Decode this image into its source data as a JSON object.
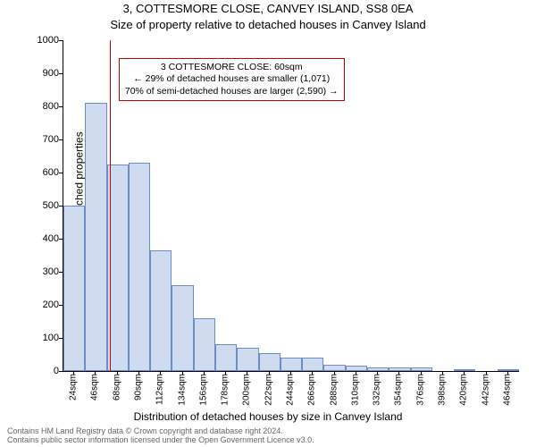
{
  "suptitle": "3, COTTESMORE CLOSE, CANVEY ISLAND, SS8 0EA",
  "title": "Size of property relative to detached houses in Canvey Island",
  "ylabel": "Number of detached properties",
  "xlabel": "Distribution of detached houses by size in Canvey Island",
  "attribution_line1": "Contains HM Land Registry data © Crown copyright and database right 2024.",
  "attribution_line2": "Contains public sector information licensed under the Open Government Licence v3.0.",
  "chart": {
    "type": "histogram",
    "background_color": "#ffffff",
    "bar_fill": "#cfdcef",
    "bar_edge": "#6b8dc6",
    "marker_color": "#cc0000",
    "text_color": "#000000",
    "attribution_color": "#666666",
    "ylim": [
      0,
      1000
    ],
    "ytick_step": 100,
    "xtick_start": 24,
    "xtick_step": 22,
    "xtick_count": 21,
    "xtick_unit": "sqm",
    "x_data_min": 13,
    "x_data_max": 475,
    "bin_width": 22,
    "marker_at_x": 60,
    "bar_values": [
      500,
      810,
      625,
      630,
      365,
      260,
      160,
      80,
      70,
      55,
      40,
      40,
      20,
      16,
      10,
      10,
      10,
      0,
      6,
      0,
      3
    ],
    "annotation": {
      "line1": "3 COTTESMORE CLOSE: 60sqm",
      "line2": "← 29% of detached houses are smaller (1,071)",
      "line3": "70% of semi-detached houses are larger (2,590) →",
      "border_color": "#cc0000",
      "background_color": "#ffffff",
      "fontsize": 10.5
    },
    "title_fontsize": 13,
    "label_fontsize": 12,
    "ytick_fontsize": 11,
    "xtick_fontsize": 10,
    "attribution_fontsize": 9
  }
}
